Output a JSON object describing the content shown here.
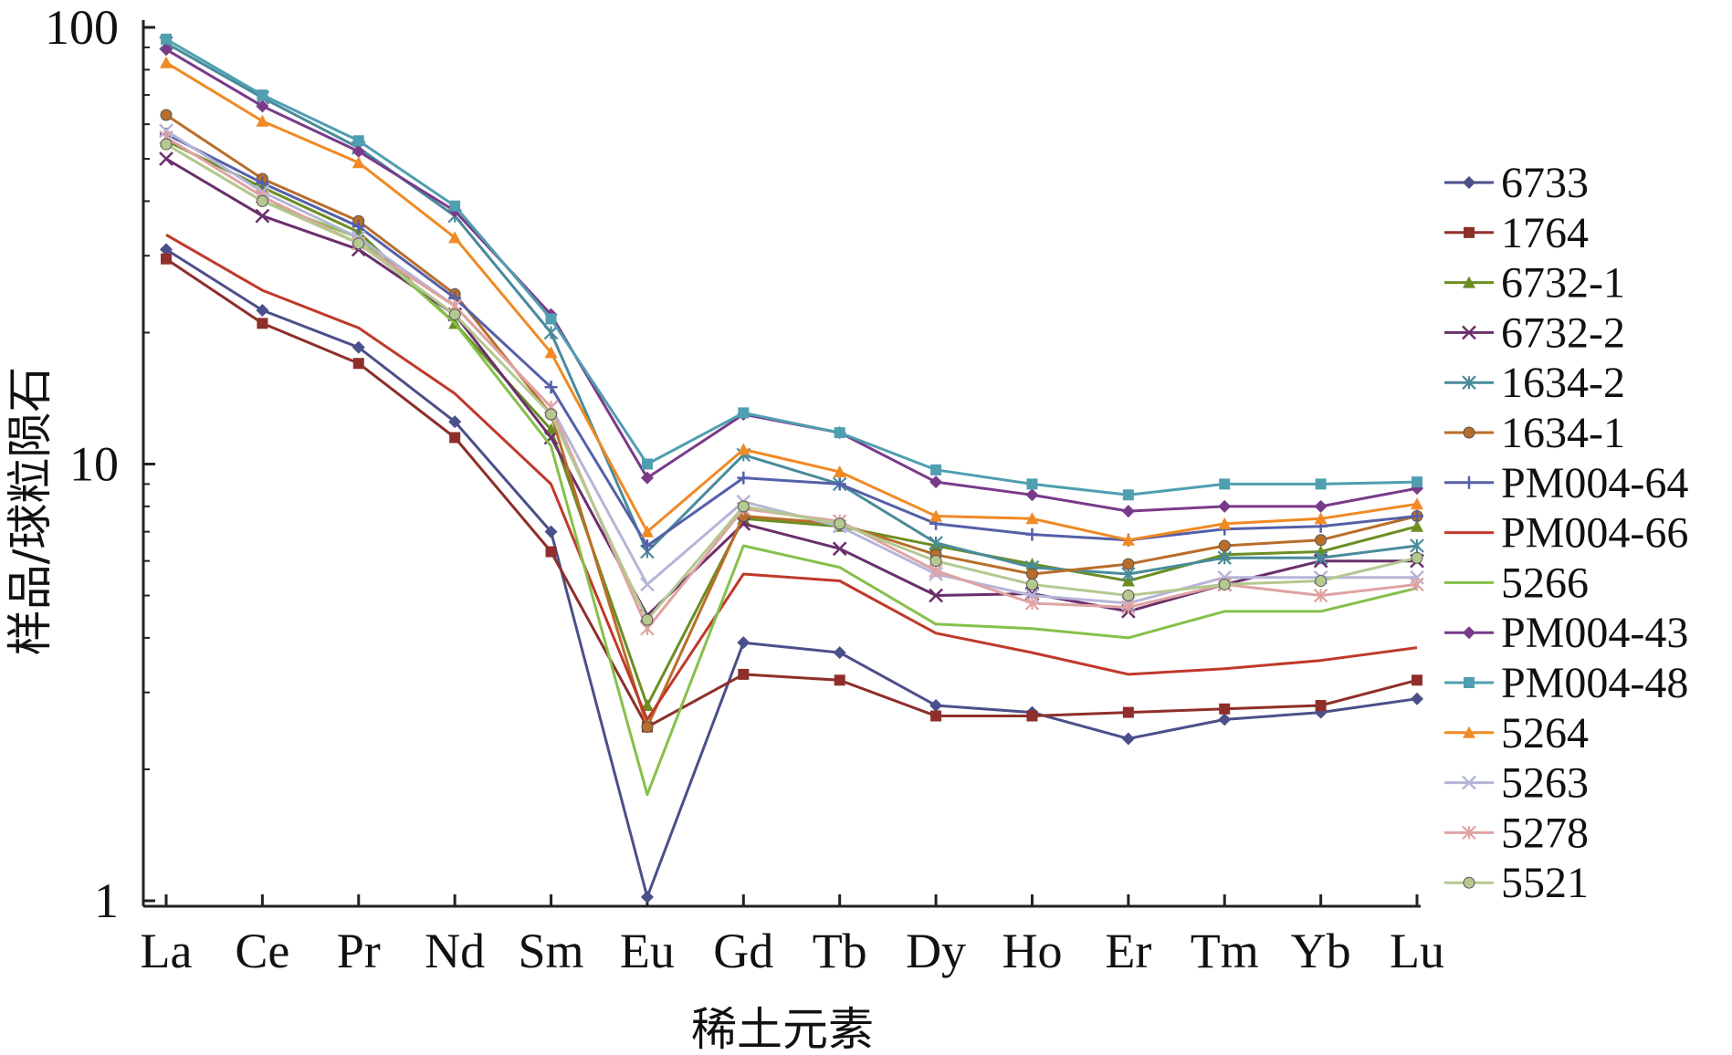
{
  "chart_data": {
    "type": "line",
    "xlabel": "稀土元素",
    "ylabel": "样品/球粒陨石",
    "y_scale": "log",
    "ylim": [
      1,
      100
    ],
    "y_ticks": [
      "1",
      "10",
      "100"
    ],
    "grid": false,
    "legend_position": "right",
    "categories": [
      "La",
      "Ce",
      "Pr",
      "Nd",
      "Sm",
      "Eu",
      "Gd",
      "Tb",
      "Dy",
      "Ho",
      "Er",
      "Tm",
      "Yb",
      "Lu"
    ],
    "series": [
      {
        "name": "6733",
        "color": "#4b4f8a",
        "marker": "diamond",
        "values": [
          31,
          22.5,
          18.5,
          12.5,
          7,
          1.02,
          3.9,
          3.7,
          2.8,
          2.7,
          2.35,
          2.6,
          2.7,
          2.9
        ]
      },
      {
        "name": "1764",
        "color": "#8e2f2a",
        "marker": "square",
        "values": [
          29.5,
          21,
          17,
          11.5,
          6.3,
          2.5,
          3.3,
          3.2,
          2.65,
          2.65,
          2.7,
          2.75,
          2.8,
          3.2
        ]
      },
      {
        "name": "6732-1",
        "color": "#6b8e23",
        "marker": "triangle",
        "values": [
          55,
          43,
          34,
          21,
          12,
          2.8,
          7.5,
          7.2,
          6.5,
          5.9,
          5.4,
          6.2,
          6.3,
          7.2
        ]
      },
      {
        "name": "6732-2",
        "color": "#6a2f6a",
        "marker": "x",
        "values": [
          50,
          37,
          31,
          22,
          11.5,
          4.5,
          7.3,
          6.4,
          5,
          5.05,
          4.6,
          5.3,
          6,
          6
        ]
      },
      {
        "name": "1634-2",
        "color": "#4a8b9a",
        "marker": "star",
        "values": [
          92,
          69,
          53,
          37,
          20,
          6.3,
          10.5,
          9,
          6.6,
          5.8,
          5.6,
          6.1,
          6.1,
          6.5
        ]
      },
      {
        "name": "1634-1",
        "color": "#b86e2a",
        "marker": "circle",
        "values": [
          63,
          45,
          36,
          24.5,
          13,
          2.5,
          7.6,
          7.3,
          6.2,
          5.6,
          5.9,
          6.5,
          6.7,
          7.6
        ]
      },
      {
        "name": "PM004-64",
        "color": "#5560a8",
        "marker": "plus",
        "values": [
          57,
          44,
          35,
          24,
          15,
          6.5,
          9.3,
          9,
          7.3,
          6.9,
          6.7,
          7.1,
          7.2,
          7.6
        ]
      },
      {
        "name": "PM004-66",
        "color": "#c0392b",
        "marker": "none",
        "values": [
          33.5,
          25,
          20.5,
          14.5,
          9,
          2.6,
          5.6,
          5.4,
          4.1,
          3.7,
          3.3,
          3.4,
          3.55,
          3.8
        ]
      },
      {
        "name": "5266",
        "color": "#86c04a",
        "marker": "none",
        "values": [
          54,
          40,
          33,
          21,
          11,
          1.75,
          6.5,
          5.8,
          4.3,
          4.2,
          4,
          4.6,
          4.6,
          5.2
        ]
      },
      {
        "name": "PM004-43",
        "color": "#7a3a8a",
        "marker": "diamond",
        "values": [
          89,
          66,
          52,
          38,
          22,
          9.3,
          13,
          11.8,
          9.1,
          8.5,
          7.8,
          8,
          8,
          8.8
        ]
      },
      {
        "name": "PM004-48",
        "color": "#4f9fb0",
        "marker": "square",
        "values": [
          94,
          70,
          55,
          39,
          21.5,
          10,
          13.1,
          11.8,
          9.7,
          9,
          8.5,
          9,
          9,
          9.1
        ]
      },
      {
        "name": "5264",
        "color": "#f08a24",
        "marker": "triangle",
        "values": [
          83,
          61,
          49,
          33,
          18,
          7,
          10.8,
          9.6,
          7.6,
          7.5,
          6.7,
          7.3,
          7.5,
          8.1
        ]
      },
      {
        "name": "5263",
        "color": "#b5b5d8",
        "marker": "x",
        "values": [
          58,
          42,
          33,
          23,
          13.5,
          5.3,
          8.2,
          7.2,
          5.6,
          5,
          4.8,
          5.5,
          5.5,
          5.5
        ]
      },
      {
        "name": "5278",
        "color": "#e0a2a2",
        "marker": "star",
        "values": [
          56,
          41,
          32,
          23,
          13.5,
          4.2,
          7.9,
          7.4,
          5.7,
          4.8,
          4.7,
          5.3,
          5,
          5.3
        ]
      },
      {
        "name": "5521",
        "color": "#b4c890",
        "marker": "circle",
        "values": [
          54,
          40,
          32,
          22,
          13,
          4.4,
          8,
          7.3,
          6,
          5.3,
          5,
          5.3,
          5.4,
          6.1
        ]
      }
    ]
  }
}
